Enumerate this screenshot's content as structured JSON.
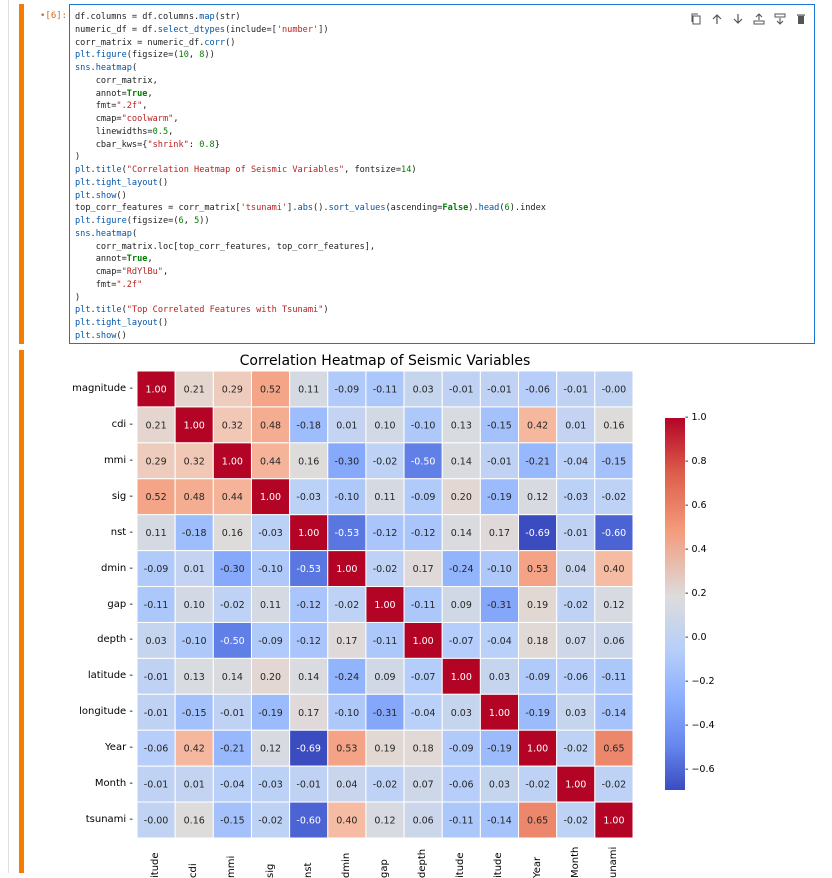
{
  "cell": {
    "prompt": "[6]:",
    "code_lines": [
      "df.columns = df.columns.map(str)",
      "numeric_df = df.select_dtypes(include=['number'])",
      "corr_matrix = numeric_df.corr()",
      "plt.figure(figsize=(10, 8))",
      "sns.heatmap(",
      "    corr_matrix,",
      "    annot=True,",
      "    fmt=\".2f\",",
      "    cmap=\"coolwarm\",",
      "    linewidths=0.5,",
      "    cbar_kws={\"shrink\": 0.8}",
      ")",
      "plt.title(\"Correlation Heatmap of Seismic Variables\", fontsize=14)",
      "plt.tight_layout()",
      "plt.show()",
      "top_corr_features = corr_matrix['tsunami'].abs().sort_values(ascending=False).head(6).index",
      "plt.figure(figsize=(6, 5))",
      "sns.heatmap(",
      "    corr_matrix.loc[top_corr_features, top_corr_features],",
      "    annot=True,",
      "    cmap=\"RdYlBu\",",
      "    fmt=\".2f\"",
      ")",
      "plt.title(\"Top Correlated Features with Tsunami\")",
      "plt.tight_layout()",
      "plt.show()"
    ],
    "toolbar": [
      "copy-icon",
      "move-up-icon",
      "move-down-icon",
      "insert-above-icon",
      "insert-below-icon",
      "delete-icon"
    ]
  },
  "chart_data": {
    "type": "heatmap",
    "title": "Correlation Heatmap of Seismic Variables",
    "x_labels": [
      "magnitude",
      "cdi",
      "mmi",
      "sig",
      "nst",
      "dmin",
      "gap",
      "depth",
      "latitude",
      "longitude",
      "Year",
      "Month",
      "tsunami"
    ],
    "x_labels_visible": [
      "itude",
      "cdi",
      "mmi",
      "sig",
      "nst",
      "dmin",
      "gap",
      "depth",
      "itude",
      "itude",
      "Year",
      "Month",
      "unami"
    ],
    "y_labels": [
      "magnitude",
      "cdi",
      "mmi",
      "sig",
      "nst",
      "dmin",
      "gap",
      "depth",
      "latitude",
      "longitude",
      "Year",
      "Month",
      "tsunami"
    ],
    "values": [
      [
        1.0,
        0.21,
        0.29,
        0.52,
        0.11,
        -0.09,
        -0.11,
        0.03,
        -0.01,
        -0.01,
        -0.06,
        -0.01,
        -0.0
      ],
      [
        0.21,
        1.0,
        0.32,
        0.48,
        -0.18,
        0.01,
        0.1,
        -0.1,
        0.13,
        -0.15,
        0.42,
        0.01,
        0.16
      ],
      [
        0.29,
        0.32,
        1.0,
        0.44,
        0.16,
        -0.3,
        -0.02,
        -0.5,
        0.14,
        -0.01,
        -0.21,
        -0.04,
        -0.15
      ],
      [
        0.52,
        0.48,
        0.44,
        1.0,
        -0.03,
        -0.1,
        0.11,
        -0.09,
        0.2,
        -0.19,
        0.12,
        -0.03,
        -0.02
      ],
      [
        0.11,
        -0.18,
        0.16,
        -0.03,
        1.0,
        -0.53,
        -0.12,
        -0.12,
        0.14,
        0.17,
        -0.69,
        -0.01,
        -0.6
      ],
      [
        -0.09,
        0.01,
        -0.3,
        -0.1,
        -0.53,
        1.0,
        -0.02,
        0.17,
        -0.24,
        -0.1,
        0.53,
        0.04,
        0.4
      ],
      [
        -0.11,
        0.1,
        -0.02,
        0.11,
        -0.12,
        -0.02,
        1.0,
        -0.11,
        0.09,
        -0.31,
        0.19,
        -0.02,
        0.12
      ],
      [
        0.03,
        -0.1,
        -0.5,
        -0.09,
        -0.12,
        0.17,
        -0.11,
        1.0,
        -0.07,
        -0.04,
        0.18,
        0.07,
        0.06
      ],
      [
        -0.01,
        0.13,
        0.14,
        0.2,
        0.14,
        -0.24,
        0.09,
        -0.07,
        1.0,
        0.03,
        -0.09,
        -0.06,
        -0.11
      ],
      [
        -0.01,
        -0.15,
        -0.01,
        -0.19,
        0.17,
        -0.1,
        -0.31,
        -0.04,
        0.03,
        1.0,
        -0.19,
        0.03,
        -0.14
      ],
      [
        -0.06,
        0.42,
        -0.21,
        0.12,
        -0.69,
        0.53,
        0.19,
        0.18,
        -0.09,
        -0.19,
        1.0,
        -0.02,
        0.65
      ],
      [
        -0.01,
        0.01,
        -0.04,
        -0.03,
        -0.01,
        0.04,
        -0.02,
        0.07,
        -0.06,
        0.03,
        -0.02,
        1.0,
        -0.02
      ],
      [
        -0.0,
        0.16,
        -0.15,
        -0.02,
        -0.6,
        0.4,
        0.12,
        0.06,
        -0.11,
        -0.14,
        0.65,
        -0.02,
        1.0
      ]
    ],
    "value_range": [
      -0.69,
      1.0
    ],
    "colormap": "coolwarm",
    "colorbar_ticks": [
      "1.0",
      "0.8",
      "0.6",
      "0.4",
      "0.2",
      "0.0",
      "−0.2",
      "−0.4",
      "−0.6"
    ],
    "colorbar_tick_values": [
      1.0,
      0.8,
      0.6,
      0.4,
      0.2,
      0.0,
      -0.2,
      -0.4,
      -0.6
    ]
  }
}
